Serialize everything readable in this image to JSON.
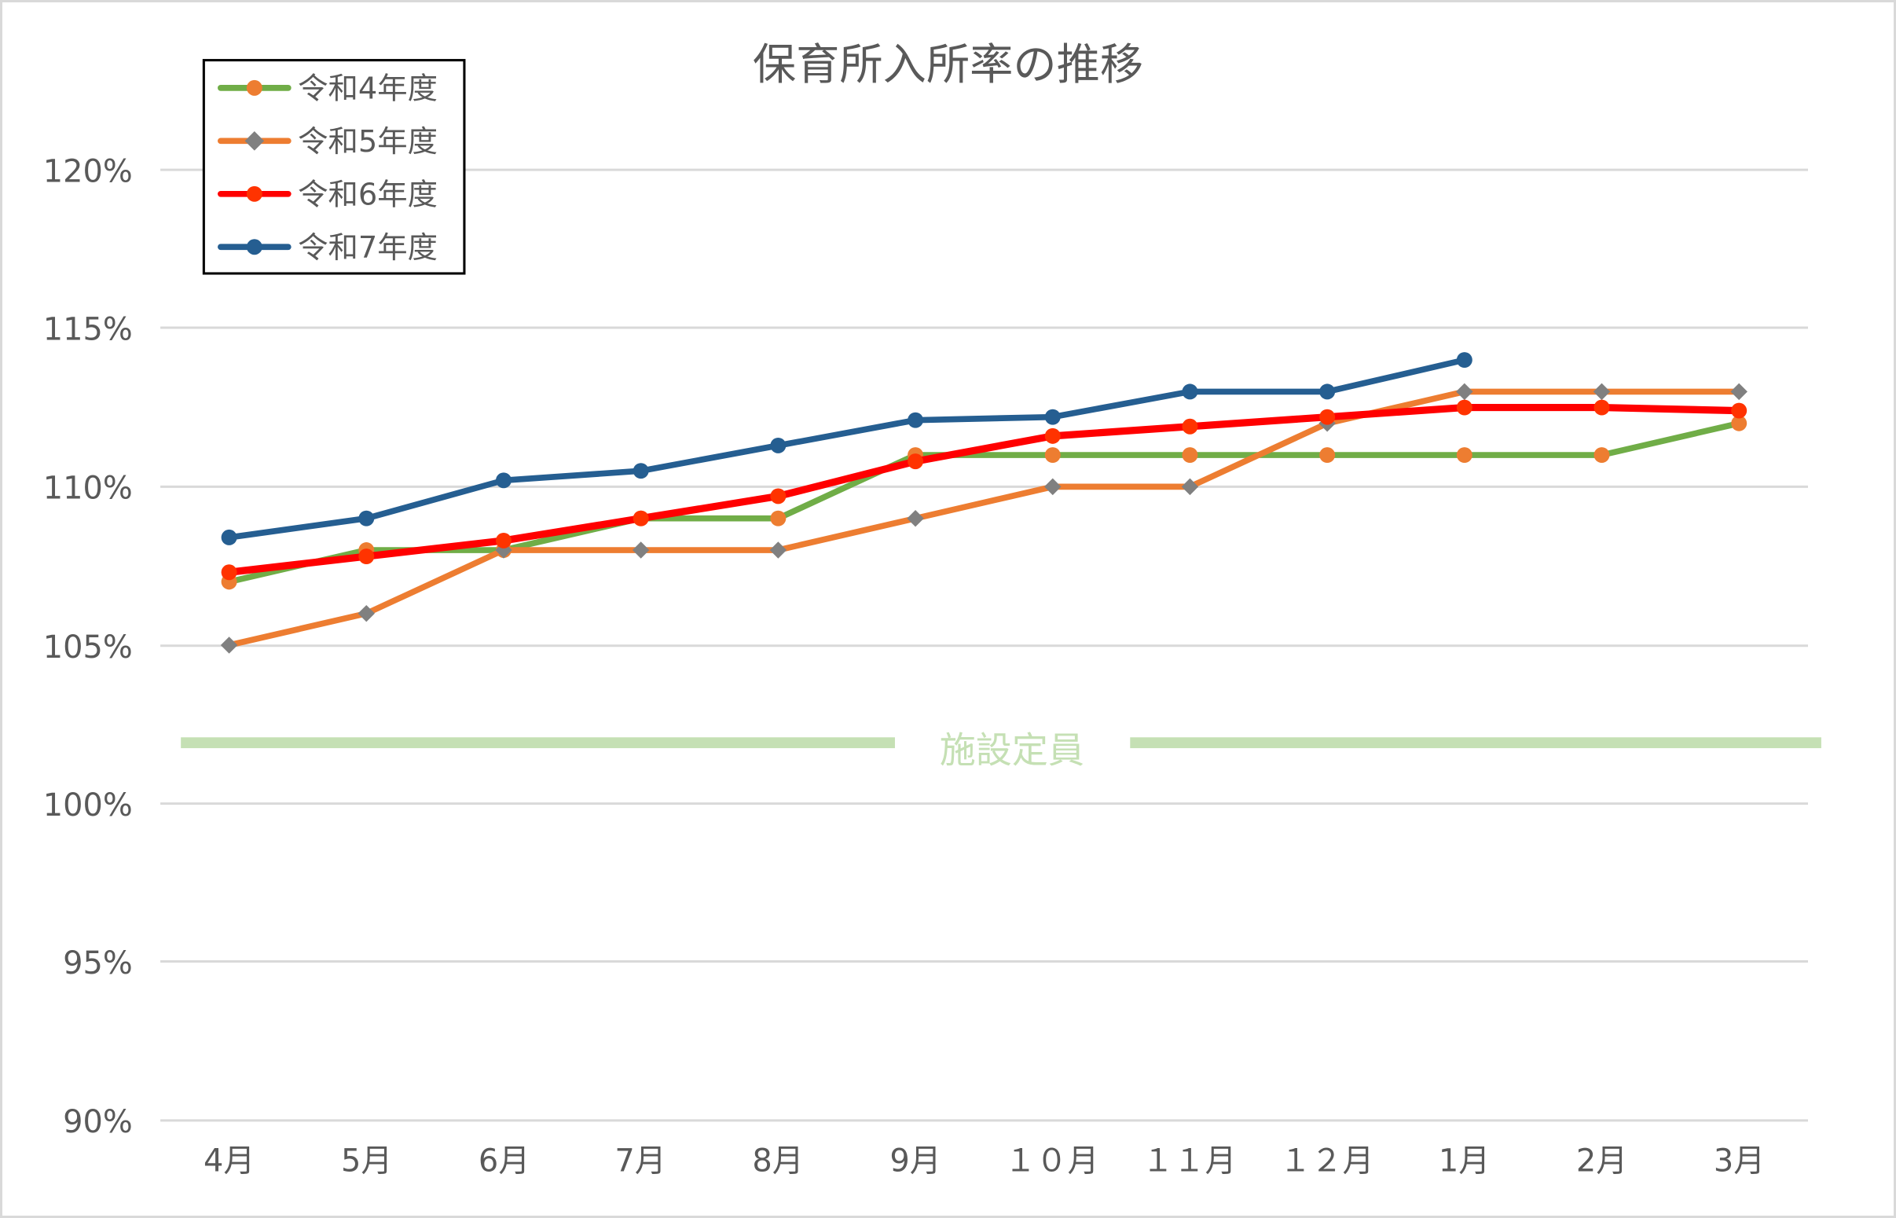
{
  "chart_data": {
    "type": "line",
    "title": "保育所入所率の推移",
    "xlabel": "",
    "ylabel": "",
    "categories": [
      "4月",
      "5月",
      "6月",
      "7月",
      "8月",
      "9月",
      "１０月",
      "１１月",
      "１２月",
      "1月",
      "2月",
      "3月"
    ],
    "y_ticks": [
      "90%",
      "95%",
      "100%",
      "105%",
      "110%",
      "115%",
      "120%"
    ],
    "ylim": [
      90,
      120
    ],
    "grid": true,
    "legend_position": "top-left (inside plot)",
    "series": [
      {
        "name": "令和4年度",
        "line_color": "#70ad47",
        "marker": "circle",
        "marker_color": "#ed7d31",
        "values": [
          107.0,
          108.0,
          108.0,
          109.0,
          109.0,
          111.0,
          111.0,
          111.0,
          111.0,
          111.0,
          111.0,
          112.0
        ]
      },
      {
        "name": "令和5年度",
        "line_color": "#ed7d31",
        "marker": "diamond",
        "marker_color": "#808080",
        "values": [
          105.0,
          106.0,
          108.0,
          108.0,
          108.0,
          109.0,
          110.0,
          110.0,
          112.0,
          113.0,
          113.0,
          113.0
        ]
      },
      {
        "name": "令和6年度",
        "line_color": "#ff0000",
        "marker": "circle",
        "marker_color": "#ff3300",
        "values": [
          107.3,
          107.8,
          108.3,
          109.0,
          109.7,
          110.8,
          111.6,
          111.9,
          112.2,
          112.5,
          112.5,
          112.4
        ]
      },
      {
        "name": "令和7年度",
        "line_color": "#255e91",
        "marker": "circle",
        "marker_color": "#255e91",
        "values": [
          108.4,
          109.0,
          110.2,
          110.5,
          111.3,
          112.1,
          112.2,
          113.0,
          113.0,
          114.0,
          null,
          null
        ]
      }
    ],
    "annotations": [
      {
        "text": "施設定員",
        "type": "reference-band",
        "y": 102,
        "color": "#c5e0b4"
      }
    ]
  },
  "labels": {
    "title": "保育所入所率の推移",
    "capacity": "施設定員",
    "legend": [
      "令和4年度",
      "令和5年度",
      "令和6年度",
      "令和7年度"
    ],
    "y": [
      "120%",
      "115%",
      "110%",
      "105%",
      "100%",
      "95%",
      "90%"
    ],
    "x": [
      "4月",
      "5月",
      "6月",
      "7月",
      "8月",
      "9月",
      "１０月",
      "１１月",
      "１２月",
      "1月",
      "2月",
      "3月"
    ]
  }
}
